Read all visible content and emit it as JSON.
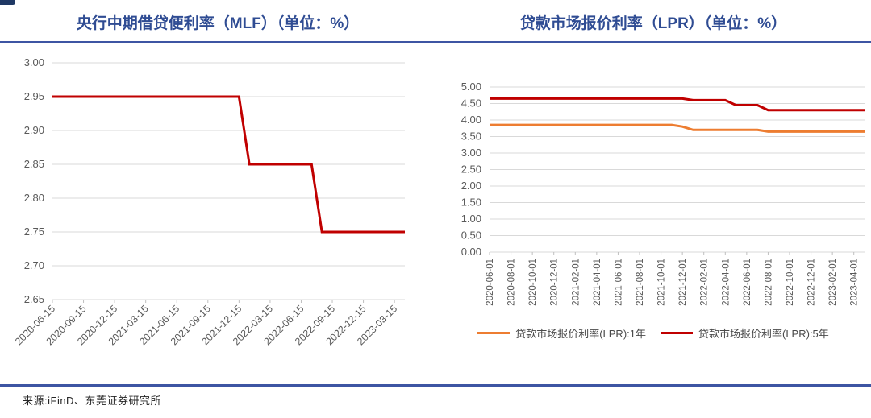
{
  "page": {
    "background": "#ffffff",
    "accent_navy": "#2F4C93",
    "divider_blue": "#3D55A3"
  },
  "footer": {
    "source": "来源:iFinD、东莞证券研究所"
  },
  "chart_data": [
    {
      "type": "line",
      "title": "央行中期借贷便利率（MLF）（单位：%）",
      "xlabel": "",
      "ylabel": "",
      "ylim": [
        2.65,
        3.0
      ],
      "ytick_step": 0.05,
      "ytick_decimals": 2,
      "grid": true,
      "legend_position": "none",
      "xtick_every": 3,
      "x": [
        "2020-06-15",
        "2020-07-15",
        "2020-08-15",
        "2020-09-15",
        "2020-10-15",
        "2020-11-15",
        "2020-12-15",
        "2021-01-15",
        "2021-02-15",
        "2021-03-15",
        "2021-04-15",
        "2021-05-15",
        "2021-06-15",
        "2021-07-15",
        "2021-08-15",
        "2021-09-15",
        "2021-10-15",
        "2021-11-15",
        "2021-12-15",
        "2022-01-15",
        "2022-02-15",
        "2022-03-15",
        "2022-04-15",
        "2022-05-15",
        "2022-06-15",
        "2022-07-15",
        "2022-08-15",
        "2022-09-15",
        "2022-10-15",
        "2022-11-15",
        "2022-12-15",
        "2023-01-15",
        "2023-02-15",
        "2023-03-15",
        "2023-04-15"
      ],
      "series": [
        {
          "color": "#C00000",
          "values": [
            2.95,
            2.95,
            2.95,
            2.95,
            2.95,
            2.95,
            2.95,
            2.95,
            2.95,
            2.95,
            2.95,
            2.95,
            2.95,
            2.95,
            2.95,
            2.95,
            2.95,
            2.95,
            2.95,
            2.85,
            2.85,
            2.85,
            2.85,
            2.85,
            2.85,
            2.85,
            2.75,
            2.75,
            2.75,
            2.75,
            2.75,
            2.75,
            2.75,
            2.75,
            2.75
          ]
        }
      ]
    },
    {
      "type": "line",
      "title": "贷款市场报价利率（LPR）（单位：%）",
      "xlabel": "",
      "ylabel": "",
      "ylim": [
        0.0,
        5.0
      ],
      "ytick_step": 0.5,
      "ytick_decimals": 2,
      "grid": true,
      "legend_position": "bottom",
      "xtick_every": 2,
      "x": [
        "2020-06-01",
        "2020-07-01",
        "2020-08-01",
        "2020-09-01",
        "2020-10-01",
        "2020-11-01",
        "2020-12-01",
        "2021-01-01",
        "2021-02-01",
        "2021-03-01",
        "2021-04-01",
        "2021-05-01",
        "2021-06-01",
        "2021-07-01",
        "2021-08-01",
        "2021-09-01",
        "2021-10-01",
        "2021-11-01",
        "2021-12-01",
        "2022-01-01",
        "2022-02-01",
        "2022-03-01",
        "2022-04-01",
        "2022-05-01",
        "2022-06-01",
        "2022-07-01",
        "2022-08-01",
        "2022-09-01",
        "2022-10-01",
        "2022-11-01",
        "2022-12-01",
        "2023-01-01",
        "2023-02-01",
        "2023-03-01",
        "2023-04-01",
        "2023-05-01"
      ],
      "series": [
        {
          "name": "贷款市场报价利率(LPR):1年",
          "color": "#ED7D31",
          "values": [
            3.85,
            3.85,
            3.85,
            3.85,
            3.85,
            3.85,
            3.85,
            3.85,
            3.85,
            3.85,
            3.85,
            3.85,
            3.85,
            3.85,
            3.85,
            3.85,
            3.85,
            3.85,
            3.8,
            3.7,
            3.7,
            3.7,
            3.7,
            3.7,
            3.7,
            3.7,
            3.65,
            3.65,
            3.65,
            3.65,
            3.65,
            3.65,
            3.65,
            3.65,
            3.65,
            3.65
          ]
        },
        {
          "name": "贷款市场报价利率(LPR):5年",
          "color": "#C00000",
          "values": [
            4.65,
            4.65,
            4.65,
            4.65,
            4.65,
            4.65,
            4.65,
            4.65,
            4.65,
            4.65,
            4.65,
            4.65,
            4.65,
            4.65,
            4.65,
            4.65,
            4.65,
            4.65,
            4.65,
            4.6,
            4.6,
            4.6,
            4.6,
            4.45,
            4.45,
            4.45,
            4.3,
            4.3,
            4.3,
            4.3,
            4.3,
            4.3,
            4.3,
            4.3,
            4.3,
            4.3
          ]
        }
      ]
    }
  ]
}
